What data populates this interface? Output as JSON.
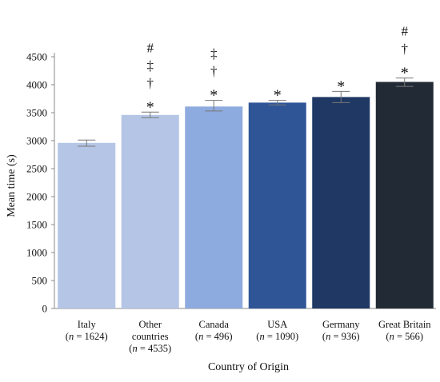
{
  "chart_data": {
    "type": "bar",
    "xlabel": "Country of Origin",
    "ylabel": "Mean time (s)",
    "ylim": [
      0,
      4500
    ],
    "yticks": [
      0,
      500,
      1000,
      1500,
      2000,
      2500,
      3000,
      3500,
      4000,
      4500
    ],
    "grid": false,
    "legend": "none",
    "categories": [
      {
        "name": "Italy",
        "n_label": "n",
        "n_value": "= 1624)",
        "line2": ""
      },
      {
        "name": "Other",
        "line2": "countries",
        "n_label": "n",
        "n_value": "= 4535)"
      },
      {
        "name": "Canada",
        "n_label": "n",
        "n_value": "= 496)",
        "line2": ""
      },
      {
        "name": "USA",
        "n_label": "n",
        "n_value": "= 1090)",
        "line2": ""
      },
      {
        "name": "Germany",
        "n_label": "n",
        "n_value": "= 936)",
        "line2": ""
      },
      {
        "name": "Great Britain",
        "n_label": "n",
        "n_value": "= 566)",
        "line2": ""
      }
    ],
    "values": [
      2960,
      3460,
      3610,
      3680,
      3780,
      4050
    ],
    "error_low": [
      2900,
      3410,
      3530,
      3640,
      3680,
      3970
    ],
    "error_high": [
      3010,
      3510,
      3720,
      3720,
      3880,
      4120
    ],
    "colors": [
      "#b4c5e6",
      "#b4c5e6",
      "#8eabdf",
      "#2f5597",
      "#1f3864",
      "#222a35"
    ],
    "significance": [
      [],
      [
        "*",
        "†",
        "‡",
        "#"
      ],
      [
        "*",
        "†",
        "‡"
      ],
      [
        "*"
      ],
      [
        "*"
      ],
      [
        "*",
        "†",
        "#"
      ]
    ]
  }
}
